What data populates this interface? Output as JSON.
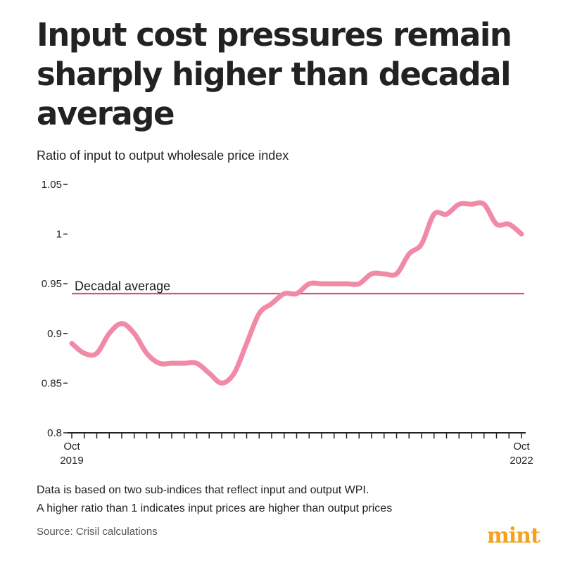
{
  "title": "Input cost pressures remain sharply higher than decadal average",
  "subtitle": "Ratio of input to output wholesale price index",
  "notes": [
    "Data is based on two sub-indices that reflect input and output WPI.",
    "A higher ratio than 1 indicates input prices are higher than output prices"
  ],
  "source": "Source: Crisil calculations",
  "logo_text": "mint",
  "colors": {
    "line": "#f08aa6",
    "reference_line": "#c4336f",
    "axis": "#222222",
    "logo": "#f4a21d"
  },
  "chart_data": {
    "type": "line",
    "title": "Input cost pressures remain sharply higher than decadal average",
    "ylabel": "Ratio of input to output wholesale price index",
    "xlabel": "",
    "ylim": [
      0.8,
      1.05
    ],
    "yticks": [
      {
        "value": 0.8,
        "label": "0.8"
      },
      {
        "value": 0.85,
        "label": "0.85"
      },
      {
        "value": 0.9,
        "label": "0.9"
      },
      {
        "value": 0.95,
        "label": "0.95"
      },
      {
        "value": 1.0,
        "label": "1"
      },
      {
        "value": 1.05,
        "label": "1.05"
      }
    ],
    "x_range": [
      0,
      36
    ],
    "x_tick_count": 37,
    "x_labels": [
      {
        "index": 0,
        "month": "Oct",
        "year": "2019"
      },
      {
        "index": 36,
        "month": "Oct",
        "year": "2022"
      }
    ],
    "reference_line": {
      "label": "Decadal average",
      "value": 0.94
    },
    "series": [
      {
        "name": "Ratio of input to output WPI",
        "x": [
          0,
          1,
          2,
          3,
          4,
          5,
          6,
          7,
          8,
          9,
          10,
          11,
          12,
          13,
          14,
          15,
          16,
          17,
          18,
          19,
          20,
          21,
          22,
          23,
          24,
          25,
          26,
          27,
          28,
          29,
          30,
          31,
          32,
          33,
          34,
          35,
          36
        ],
        "values": [
          0.89,
          0.88,
          0.88,
          0.9,
          0.91,
          0.9,
          0.88,
          0.87,
          0.87,
          0.87,
          0.87,
          0.86,
          0.85,
          0.86,
          0.89,
          0.92,
          0.93,
          0.94,
          0.94,
          0.95,
          0.95,
          0.95,
          0.95,
          0.95,
          0.96,
          0.96,
          0.96,
          0.98,
          0.99,
          1.02,
          1.02,
          1.03,
          1.03,
          1.03,
          1.01,
          1.01,
          1.0
        ]
      }
    ]
  }
}
